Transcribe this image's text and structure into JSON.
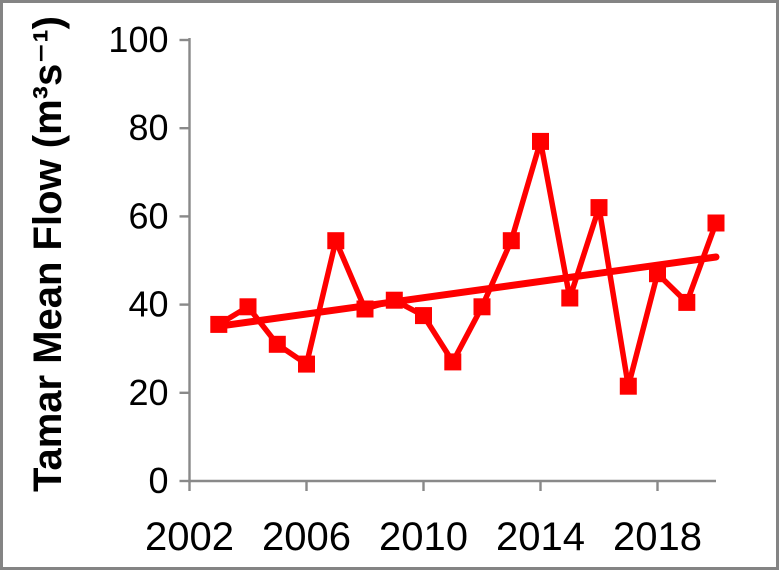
{
  "chart_data": {
    "type": "line",
    "title": "",
    "xlabel": "",
    "ylabel": "Tamar Mean Flow (m³s⁻¹)",
    "x": [
      2003,
      2004,
      2005,
      2006,
      2007,
      2008,
      2009,
      2010,
      2011,
      2012,
      2013,
      2014,
      2015,
      2016,
      2017,
      2018,
      2019,
      2020
    ],
    "series": [
      {
        "name": "Tamar mean flow",
        "values": [
          35.5,
          39.5,
          31,
          26.5,
          54.5,
          39,
          41,
          37.5,
          27,
          39.5,
          54.5,
          77,
          41.5,
          62,
          21.5,
          47,
          40.5,
          58.5
        ]
      }
    ],
    "trendline": {
      "x": [
        2003,
        2020
      ],
      "y": [
        35.1,
        50.8
      ]
    },
    "x_ticks": [
      2002,
      2006,
      2010,
      2014,
      2018
    ],
    "y_ticks": [
      0,
      20,
      40,
      60,
      80,
      100
    ],
    "xlim": [
      2002,
      2020
    ],
    "ylim": [
      0,
      100
    ],
    "grid": false,
    "legend": "none",
    "marker": "square",
    "colors": {
      "series": "#ff0000",
      "trendline": "#ff0000",
      "axis": "#898989",
      "text": "#000000",
      "frame_border": "#848484",
      "background": "#ffffff"
    }
  }
}
